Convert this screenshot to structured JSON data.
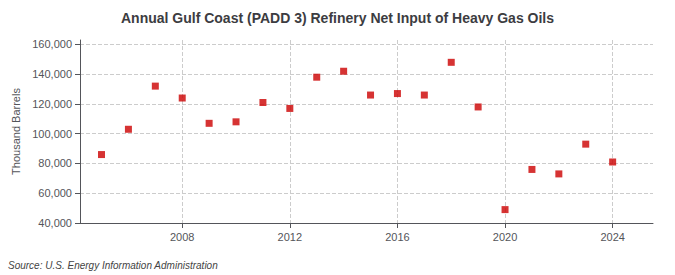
{
  "chart_data": {
    "type": "scatter",
    "title": "Annual Gulf Coast (PADD 3) Refinery Net Input of Heavy Gas Oils",
    "ylabel": "Thousand Barrels",
    "annotation": "Source: U.S. Energy Information Administration",
    "x": [
      2005,
      2006,
      2007,
      2008,
      2009,
      2010,
      2011,
      2012,
      2013,
      2014,
      2015,
      2016,
      2017,
      2018,
      2019,
      2020,
      2021,
      2022,
      2023,
      2024
    ],
    "values": [
      86000,
      103000,
      132000,
      124000,
      107000,
      108000,
      121000,
      117000,
      138000,
      142000,
      126000,
      127000,
      126000,
      148000,
      118000,
      49000,
      76000,
      73000,
      93000,
      81000
    ],
    "color": "#cc0000",
    "marker": "square",
    "xlim": [
      2004.2,
      2025.5
    ],
    "xticks": [
      2008,
      2012,
      2016,
      2020,
      2024
    ],
    "ylim": [
      40000,
      163000
    ],
    "yticks": [
      {
        "value": 40000,
        "label": "40,000"
      },
      {
        "value": 60000,
        "label": "60,000"
      },
      {
        "value": 80000,
        "label": "80,000"
      },
      {
        "value": 100000,
        "label": "100,000"
      },
      {
        "value": 120000,
        "label": "120,000"
      },
      {
        "value": 140000,
        "label": "140,000"
      },
      {
        "value": 160000,
        "label": "160,000"
      }
    ],
    "grid": true
  }
}
